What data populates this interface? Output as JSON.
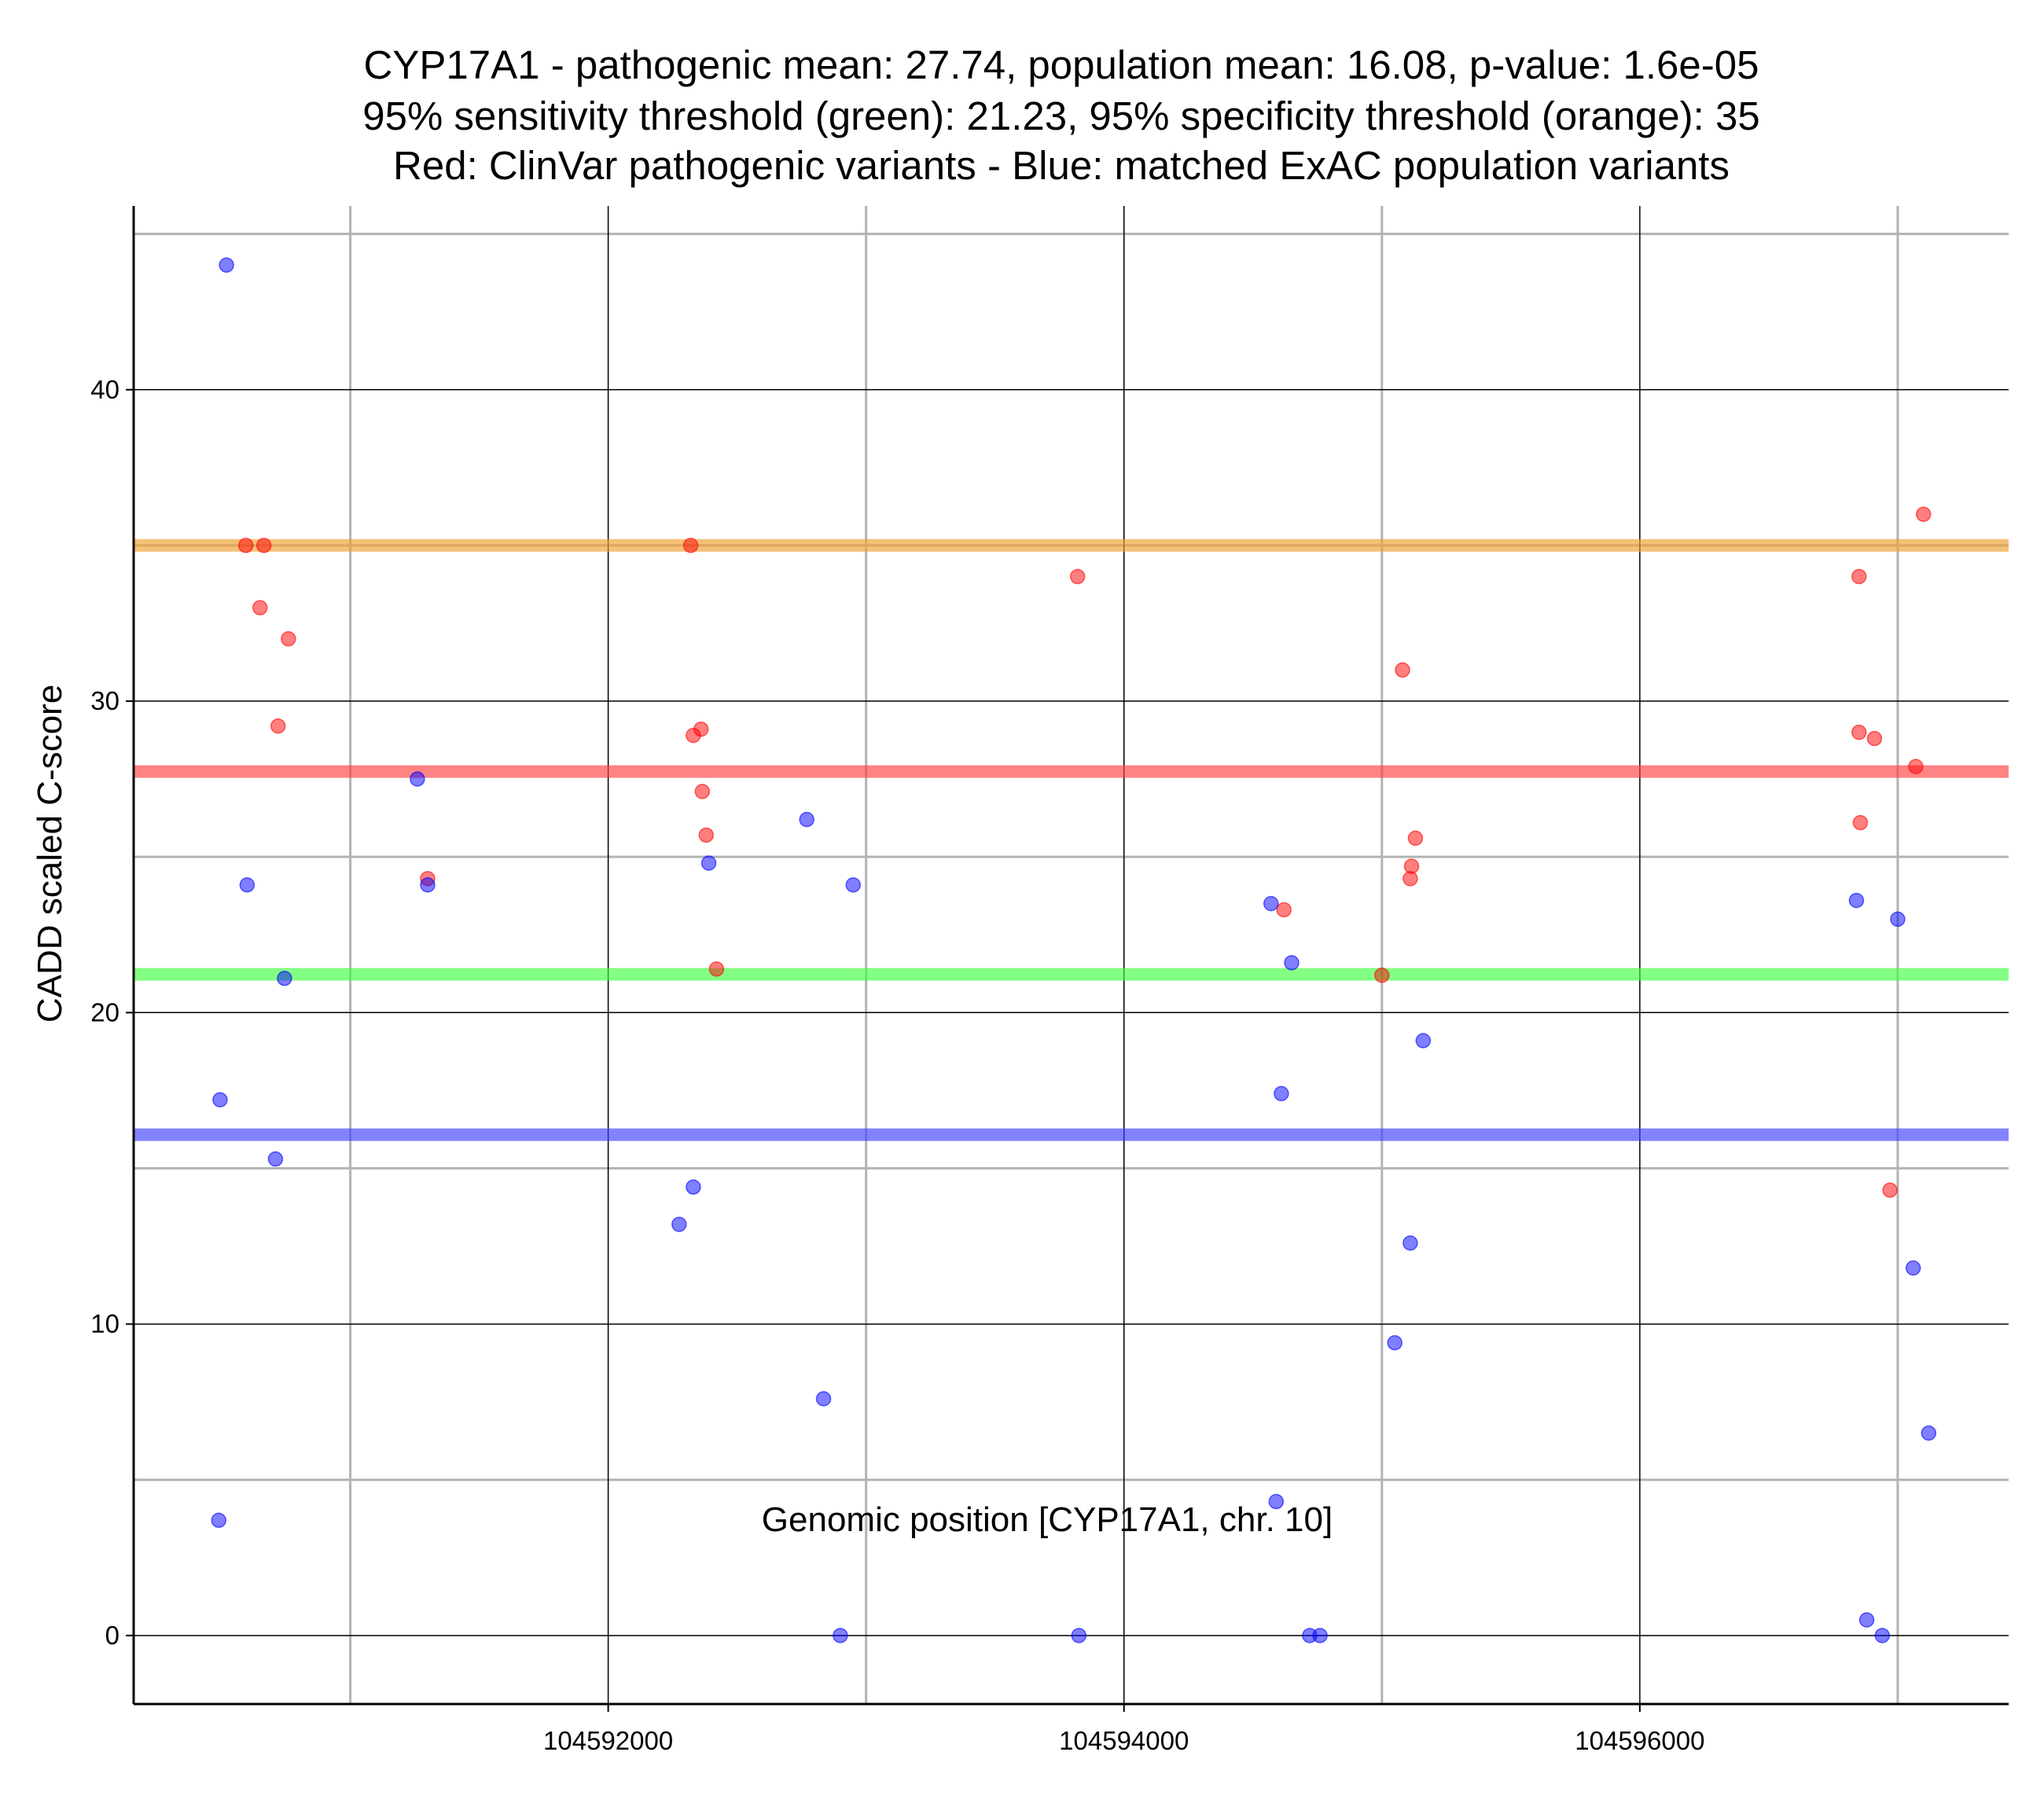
{
  "chart_data": {
    "type": "scatter",
    "title": [
      "CYP17A1 - pathogenic mean: 27.74, population mean: 16.08, p-value: 1.6e-05",
      "95% sensitivity threshold (green): 21.23, 95% specificity threshold (orange): 35",
      "Red: ClinVar pathogenic variants - Blue: matched ExAC population variants"
    ],
    "xlabel": "Genomic position [CYP17A1, chr. 10]",
    "ylabel": "CADD scaled C-score",
    "xlim": [
      104590160,
      104597430
    ],
    "ylim": [
      -2.2,
      45.9
    ],
    "x_ticks": [
      104592000,
      104594000,
      104596000
    ],
    "x_tick_labels": [
      "104592000",
      "104594000",
      "104596000"
    ],
    "x_minor_grid": [
      104591000,
      104593000,
      104595000,
      104597000
    ],
    "y_ticks": [
      0,
      10,
      20,
      30,
      40
    ],
    "y_tick_labels": [
      "0",
      "10",
      "20",
      "30",
      "40"
    ],
    "y_minor_grid": [
      5,
      15,
      25,
      35,
      45
    ],
    "grid": true,
    "hlines": [
      {
        "name": "pathogenic mean",
        "value": 27.74,
        "color": "#ff4040"
      },
      {
        "name": "population mean",
        "value": 16.08,
        "color": "#4040ff"
      },
      {
        "name": "95% sensitivity threshold",
        "value": 21.23,
        "color": "#40ff40"
      },
      {
        "name": "95% specificity threshold",
        "value": 35,
        "color": "#f0a030"
      }
    ],
    "series": [
      {
        "color": "#ff0000",
        "points": [
          [
            104590595,
            35.0
          ],
          [
            104590665,
            35.0
          ],
          [
            104590650,
            33.0
          ],
          [
            104590760,
            32.0
          ],
          [
            104590720,
            29.2
          ],
          [
            104591300,
            24.3
          ],
          [
            104592320,
            35.0
          ],
          [
            104592330,
            28.9
          ],
          [
            104592360,
            29.1
          ],
          [
            104592365,
            27.1
          ],
          [
            104592380,
            25.7
          ],
          [
            104592420,
            21.4
          ],
          [
            104593820,
            34.0
          ],
          [
            104594620,
            23.3
          ],
          [
            104595000,
            21.2
          ],
          [
            104595080,
            31.0
          ],
          [
            104595115,
            24.7
          ],
          [
            104595110,
            24.3
          ],
          [
            104595130,
            25.6
          ],
          [
            104596850,
            34.0
          ],
          [
            104596850,
            29.0
          ],
          [
            104596910,
            28.8
          ],
          [
            104596855,
            26.1
          ],
          [
            104597070,
            27.9
          ],
          [
            104597100,
            36.0
          ],
          [
            104596970,
            14.3
          ]
        ]
      },
      {
        "color": "#0000ff",
        "points": [
          [
            104590520,
            44.0
          ],
          [
            104590600,
            24.1
          ],
          [
            104590745,
            21.1
          ],
          [
            104590495,
            17.2
          ],
          [
            104590710,
            15.3
          ],
          [
            104590490,
            3.7
          ],
          [
            104591260,
            27.5
          ],
          [
            104591300,
            24.1
          ],
          [
            104592390,
            24.8
          ],
          [
            104592330,
            14.4
          ],
          [
            104592275,
            13.2
          ],
          [
            104592770,
            26.2
          ],
          [
            104592950,
            24.1
          ],
          [
            104592835,
            7.6
          ],
          [
            104592900,
            0.0
          ],
          [
            104593825,
            0.0
          ],
          [
            104594570,
            23.5
          ],
          [
            104594650,
            21.6
          ],
          [
            104594610,
            17.4
          ],
          [
            104594590,
            4.3
          ],
          [
            104594720,
            0.0
          ],
          [
            104594760,
            0.0
          ],
          [
            104595160,
            19.1
          ],
          [
            104595110,
            12.6
          ],
          [
            104595050,
            9.4
          ],
          [
            104596840,
            23.6
          ],
          [
            104597000,
            23.0
          ],
          [
            104597060,
            11.8
          ],
          [
            104597120,
            6.5
          ],
          [
            104596880,
            0.5
          ],
          [
            104596940,
            0.0
          ]
        ]
      }
    ]
  }
}
